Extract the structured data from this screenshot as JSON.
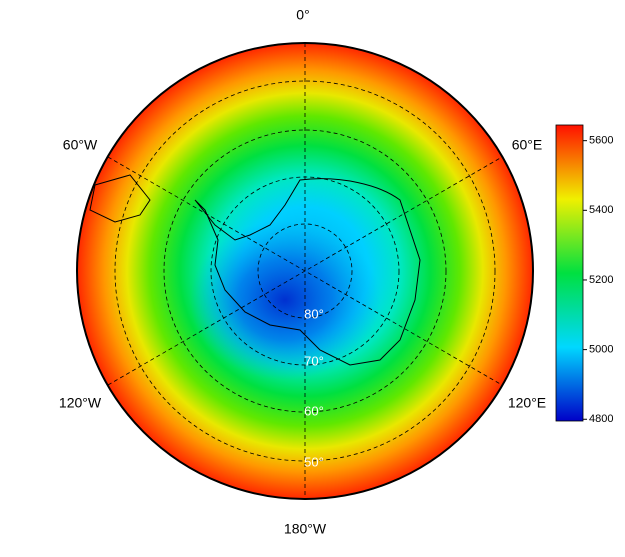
{
  "map": {
    "longitude_labels": [
      "0°",
      "60°E",
      "120°E",
      "180°W",
      "120°W",
      "60°W"
    ],
    "latitude_labels": [
      "80°",
      "70°",
      "60°",
      "50°"
    ],
    "colorbar": {
      "range": [
        4795,
        5645
      ],
      "ticks": [
        4800,
        5000,
        5200,
        5400,
        5600
      ]
    }
  }
}
